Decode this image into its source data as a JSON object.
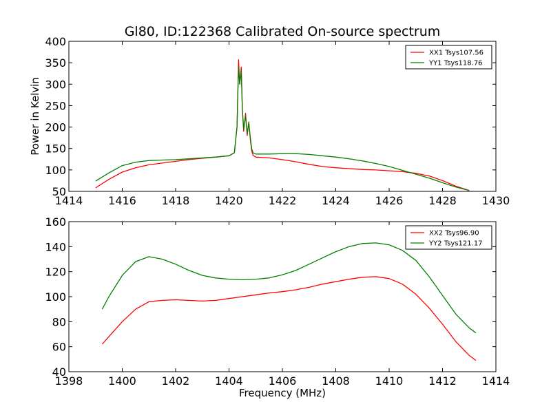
{
  "chart_data": [
    {
      "type": "line",
      "title": "Gl80, ID:122368 Calibrated On-source spectrum",
      "xlabel": "",
      "ylabel": "Power in Kelvin",
      "xlim": [
        1414,
        1430
      ],
      "ylim": [
        50,
        400
      ],
      "xticks": [
        1414,
        1416,
        1418,
        1420,
        1422,
        1424,
        1426,
        1428,
        1430
      ],
      "yticks": [
        50,
        100,
        150,
        200,
        250,
        300,
        350,
        400
      ],
      "legend_position": "upper right",
      "series": [
        {
          "name": "XX1 Tsys107.56",
          "color": "#ff0000",
          "x": [
            1415.0,
            1415.5,
            1416.0,
            1416.5,
            1417.0,
            1417.5,
            1418.0,
            1418.5,
            1419.0,
            1419.5,
            1420.0,
            1420.2,
            1420.3,
            1420.36,
            1420.4,
            1420.46,
            1420.5,
            1420.55,
            1420.62,
            1420.68,
            1420.74,
            1420.8,
            1420.85,
            1420.9,
            1421.0,
            1421.5,
            1422.0,
            1422.5,
            1423.0,
            1423.5,
            1424.0,
            1424.5,
            1425.0,
            1425.5,
            1426.0,
            1426.5,
            1427.0,
            1427.5,
            1428.0,
            1428.5,
            1429.0
          ],
          "y": [
            58,
            78,
            95,
            105,
            112,
            116,
            120,
            124,
            127,
            130,
            133,
            140,
            200,
            357,
            300,
            340,
            240,
            190,
            232,
            180,
            212,
            170,
            145,
            134,
            130,
            128,
            124,
            119,
            113,
            108,
            105,
            103,
            101,
            100,
            98,
            96,
            92,
            86,
            75,
            62,
            52
          ]
        },
        {
          "name": "YY1 Tsys118.76",
          "color": "#008000",
          "x": [
            1415.0,
            1415.5,
            1416.0,
            1416.5,
            1417.0,
            1417.5,
            1418.0,
            1418.5,
            1419.0,
            1419.5,
            1420.0,
            1420.2,
            1420.3,
            1420.36,
            1420.4,
            1420.46,
            1420.5,
            1420.55,
            1420.62,
            1420.68,
            1420.74,
            1420.8,
            1420.85,
            1420.9,
            1421.0,
            1421.5,
            1422.0,
            1422.5,
            1423.0,
            1423.5,
            1424.0,
            1424.5,
            1425.0,
            1425.5,
            1426.0,
            1426.5,
            1427.0,
            1427.5,
            1428.0,
            1428.5,
            1429.0
          ],
          "y": [
            74,
            93,
            110,
            118,
            122,
            123,
            124,
            126,
            128,
            130,
            133,
            140,
            200,
            340,
            300,
            330,
            240,
            195,
            225,
            185,
            210,
            175,
            150,
            140,
            137,
            137,
            138,
            138,
            136,
            133,
            130,
            126,
            121,
            115,
            108,
            99,
            90,
            81,
            70,
            60,
            52
          ]
        }
      ]
    },
    {
      "type": "line",
      "title": "",
      "xlabel": "Frequency (MHz)",
      "ylabel": "",
      "xlim": [
        1398,
        1414
      ],
      "ylim": [
        40,
        160
      ],
      "xticks": [
        1398,
        1400,
        1402,
        1404,
        1406,
        1408,
        1410,
        1412,
        1414
      ],
      "yticks": [
        40,
        60,
        80,
        100,
        120,
        140,
        160
      ],
      "legend_position": "upper right",
      "series": [
        {
          "name": "XX2 Tsys96.90",
          "color": "#ff0000",
          "x": [
            1399.25,
            1399.5,
            1400.0,
            1400.5,
            1401.0,
            1401.5,
            1402.0,
            1402.5,
            1403.0,
            1403.5,
            1404.0,
            1404.5,
            1405.0,
            1405.5,
            1406.0,
            1406.5,
            1407.0,
            1407.5,
            1408.0,
            1408.5,
            1409.0,
            1409.5,
            1410.0,
            1410.5,
            1411.0,
            1411.5,
            1412.0,
            1412.5,
            1413.0,
            1413.25
          ],
          "y": [
            62,
            68,
            80,
            90,
            96,
            97,
            97.5,
            97,
            96.5,
            97,
            98.5,
            100,
            101.5,
            103,
            104,
            105.5,
            107.5,
            110,
            112,
            114,
            115.5,
            116,
            114.5,
            110,
            102,
            91,
            78,
            64,
            53,
            49
          ]
        },
        {
          "name": "YY2 Tsys121.17",
          "color": "#008000",
          "x": [
            1399.25,
            1399.5,
            1400.0,
            1400.5,
            1401.0,
            1401.5,
            1402.0,
            1402.5,
            1403.0,
            1403.5,
            1404.0,
            1404.5,
            1405.0,
            1405.5,
            1406.0,
            1406.5,
            1407.0,
            1407.5,
            1408.0,
            1408.5,
            1409.0,
            1409.5,
            1410.0,
            1410.5,
            1411.0,
            1411.5,
            1412.0,
            1412.5,
            1413.0,
            1413.25
          ],
          "y": [
            90,
            100,
            117,
            128,
            132,
            130,
            126,
            121,
            117,
            115,
            114,
            113.5,
            114,
            115,
            117.5,
            121,
            126,
            131,
            136,
            140,
            142.5,
            143,
            141.5,
            137,
            129,
            116,
            101,
            86,
            75,
            71
          ]
        }
      ]
    }
  ]
}
